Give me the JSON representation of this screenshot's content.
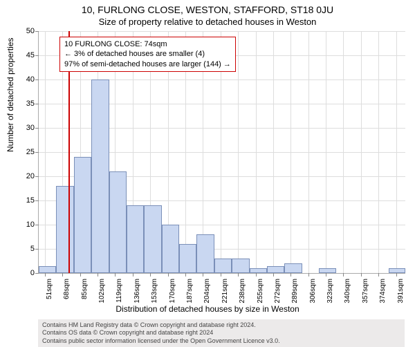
{
  "title_main": "10, FURLONG CLOSE, WESTON, STAFFORD, ST18 0JU",
  "title_sub": "Size of property relative to detached houses in Weston",
  "y_axis_label": "Number of detached properties",
  "x_axis_label": "Distribution of detached houses by size in Weston",
  "footer_line1": "Contains HM Land Registry data © Crown copyright and database right 2024.",
  "footer_line2": "Contains OS data © Crown copyright and database right 2024",
  "footer_line3": "Contains public sector information licensed under the Open Government Licence v3.0.",
  "chart": {
    "type": "histogram",
    "ylim": [
      0,
      50
    ],
    "ytick_step": 5,
    "background_color": "#ffffff",
    "grid_color": "#dddddd",
    "axis_color": "#aaaaaa",
    "bar_fill": "#c9d7f1",
    "bar_border": "#7a8fb8",
    "ref_line_color": "#cc0000",
    "ref_line_x_value": 74,
    "x_min": 45,
    "x_max": 400,
    "x_tick_start": 51,
    "x_tick_step": 17,
    "x_tick_unit": "sqm",
    "bars": [
      {
        "x0": 45,
        "x1": 62,
        "y": 1.5
      },
      {
        "x0": 62,
        "x1": 79,
        "y": 18
      },
      {
        "x0": 79,
        "x1": 96,
        "y": 24
      },
      {
        "x0": 96,
        "x1": 113,
        "y": 40
      },
      {
        "x0": 113,
        "x1": 130,
        "y": 21
      },
      {
        "x0": 130,
        "x1": 147,
        "y": 14
      },
      {
        "x0": 147,
        "x1": 164,
        "y": 14
      },
      {
        "x0": 164,
        "x1": 181,
        "y": 10
      },
      {
        "x0": 181,
        "x1": 198,
        "y": 6
      },
      {
        "x0": 198,
        "x1": 215,
        "y": 8
      },
      {
        "x0": 215,
        "x1": 232,
        "y": 3
      },
      {
        "x0": 232,
        "x1": 249,
        "y": 3
      },
      {
        "x0": 249,
        "x1": 266,
        "y": 1
      },
      {
        "x0": 266,
        "x1": 283,
        "y": 1.5
      },
      {
        "x0": 283,
        "x1": 300,
        "y": 2
      },
      {
        "x0": 316,
        "x1": 333,
        "y": 1
      },
      {
        "x0": 384,
        "x1": 400,
        "y": 1
      }
    ],
    "annotation": {
      "line1": "10 FURLONG CLOSE: 74sqm",
      "line2": "← 3% of detached houses are smaller (4)",
      "line3": "97% of semi-detached houses are larger (144) →",
      "border_color": "#cc0000",
      "bg_color": "#ffffff",
      "fontsize": 11
    }
  }
}
